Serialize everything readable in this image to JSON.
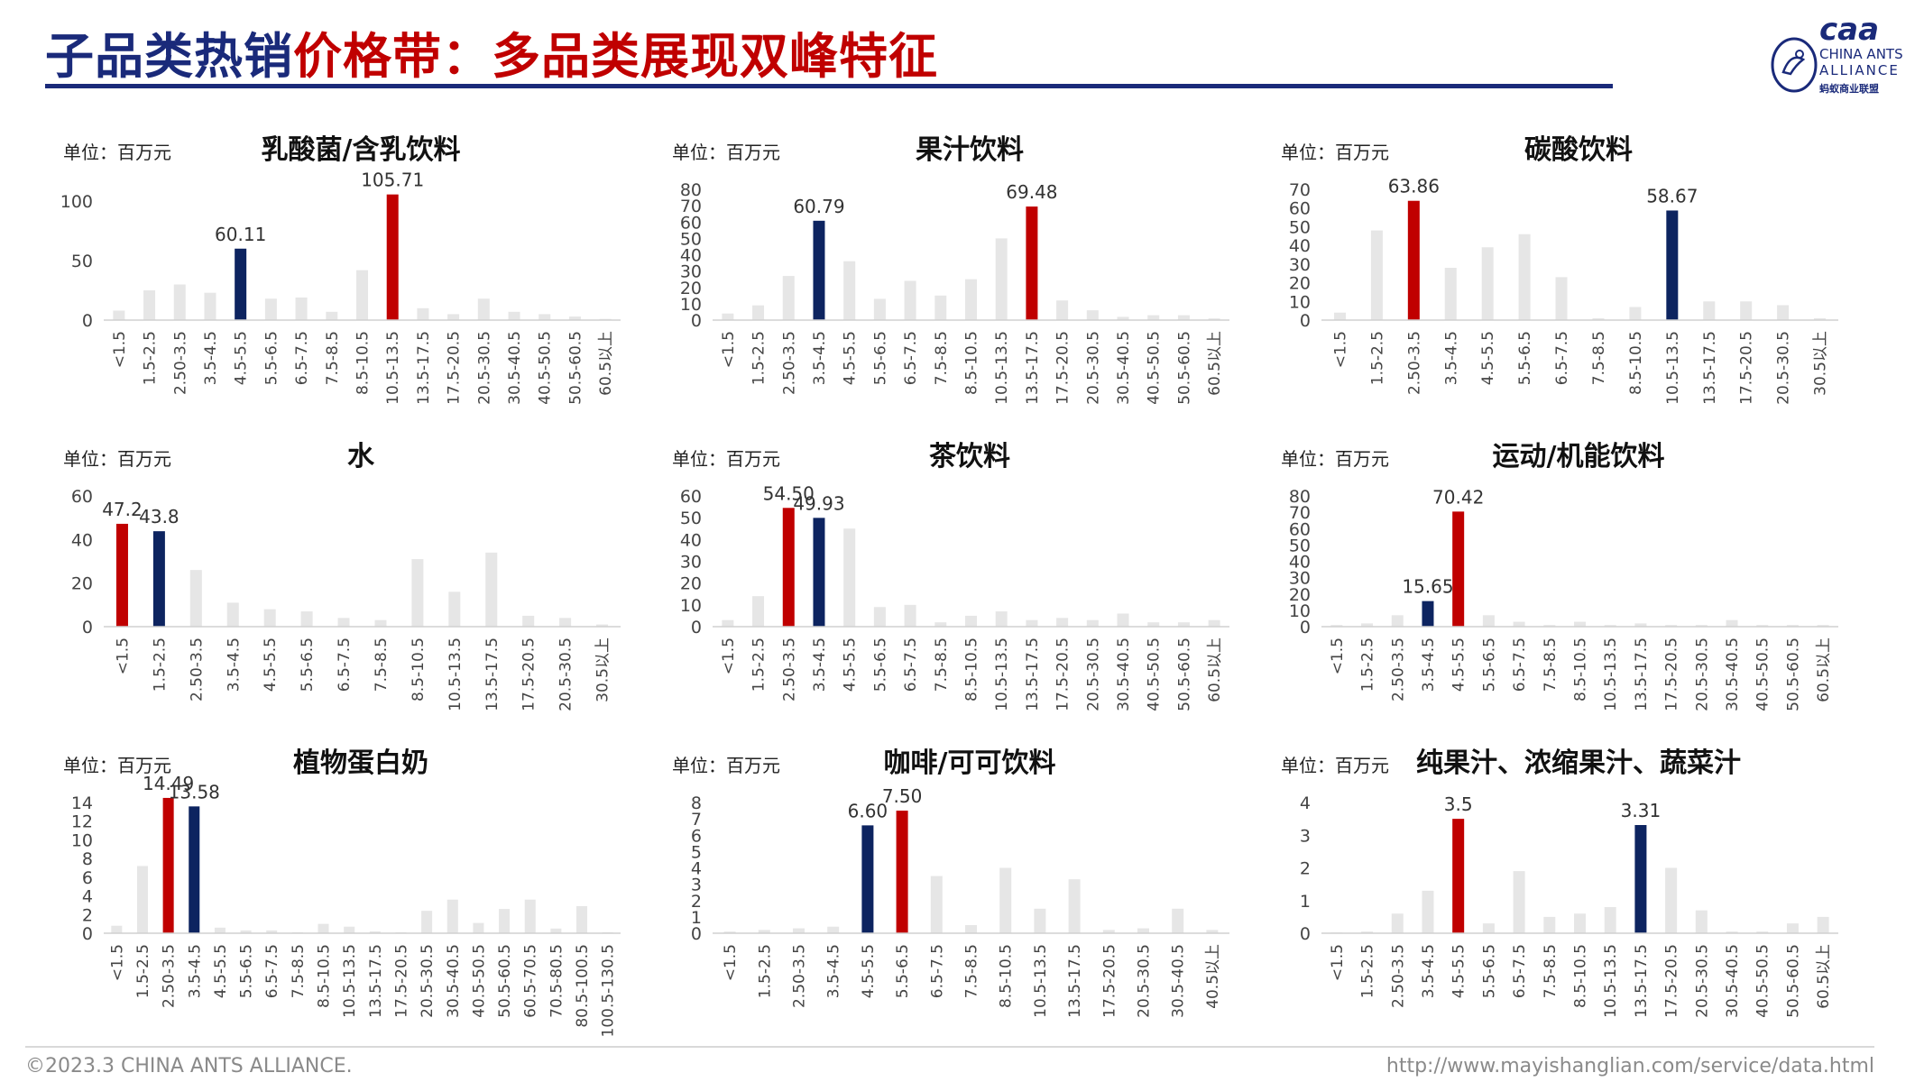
{
  "header": {
    "title_part1": "子品类热销",
    "title_part2": "价格带：多品类展现双峰特征"
  },
  "logo": {
    "mark": "caa",
    "line1": "CHINA ANTS",
    "line2": "ALLIANCE",
    "line3": "蚂蚁商业联盟"
  },
  "footer": {
    "copyright": "©2023.3 CHINA ANTS ALLIANCE.",
    "url": "http://www.mayishanglian.com/service/data.html"
  },
  "colors": {
    "title_blue": "#1a2a7a",
    "accent_red": "#c00000",
    "accent_navy": "#0d2460",
    "bar_gray": "#e6e6e6"
  },
  "chart_data": [
    {
      "type": "bar",
      "title": "乳酸菌/含乳饮料",
      "unit": "单位：百万元",
      "categories": [
        "<1.5",
        "1.5-2.5",
        "2.50-3.5",
        "3.5-4.5",
        "4.5-5.5",
        "5.5-6.5",
        "6.5-7.5",
        "7.5-8.5",
        "8.5-10.5",
        "10.5-13.5",
        "13.5-17.5",
        "17.5-20.5",
        "20.5-30.5",
        "30.5-40.5",
        "40.5-50.5",
        "50.5-60.5",
        "60.5以上"
      ],
      "values": [
        8,
        25,
        30,
        23,
        60.11,
        18,
        19,
        7,
        42,
        105.71,
        10,
        5,
        18,
        7,
        5,
        3,
        1
      ],
      "highlights": {
        "4": "navy",
        "9": "red"
      },
      "data_labels": {
        "4": "60.11",
        "9": "105.71"
      },
      "yticks": [
        "0",
        "50",
        "100"
      ],
      "ylim": [
        0,
        110
      ]
    },
    {
      "type": "bar",
      "title": "果汁饮料",
      "unit": "单位：百万元",
      "categories": [
        "<1.5",
        "1.5-2.5",
        "2.50-3.5",
        "3.5-4.5",
        "4.5-5.5",
        "5.5-6.5",
        "6.5-7.5",
        "7.5-8.5",
        "8.5-10.5",
        "10.5-13.5",
        "13.5-17.5",
        "17.5-20.5",
        "20.5-30.5",
        "30.5-40.5",
        "40.5-50.5",
        "50.5-60.5",
        "60.5以上"
      ],
      "values": [
        4,
        9,
        27,
        60.79,
        36,
        13,
        24,
        15,
        25,
        50,
        69.48,
        12,
        6,
        2,
        3,
        3,
        1
      ],
      "highlights": {
        "3": "navy",
        "10": "red"
      },
      "data_labels": {
        "3": "60.79",
        "10": "69.48"
      },
      "yticks": [
        "0",
        "10",
        "20",
        "30",
        "40",
        "50",
        "60",
        "70",
        "80"
      ],
      "ylim": [
        0,
        80
      ]
    },
    {
      "type": "bar",
      "title": "碳酸饮料",
      "unit": "单位：百万元",
      "categories": [
        "<1.5",
        "1.5-2.5",
        "2.50-3.5",
        "3.5-4.5",
        "4.5-5.5",
        "5.5-6.5",
        "6.5-7.5",
        "7.5-8.5",
        "8.5-10.5",
        "10.5-13.5",
        "13.5-17.5",
        "17.5-20.5",
        "20.5-30.5",
        "30.5以上"
      ],
      "values": [
        4,
        48,
        63.86,
        28,
        39,
        46,
        23,
        1,
        7,
        58.67,
        10,
        10,
        8,
        1
      ],
      "highlights": {
        "2": "red",
        "9": "navy"
      },
      "data_labels": {
        "2": "63.86",
        "9": "58.67"
      },
      "yticks": [
        "0",
        "10",
        "20",
        "30",
        "40",
        "50",
        "60",
        "70"
      ],
      "ylim": [
        0,
        70
      ]
    },
    {
      "type": "bar",
      "title": "水",
      "unit": "单位：百万元",
      "categories": [
        "<1.5",
        "1.5-2.5",
        "2.50-3.5",
        "3.5-4.5",
        "4.5-5.5",
        "5.5-6.5",
        "6.5-7.5",
        "7.5-8.5",
        "8.5-10.5",
        "10.5-13.5",
        "13.5-17.5",
        "17.5-20.5",
        "20.5-30.5",
        "30.5以上"
      ],
      "values": [
        47.2,
        43.8,
        26,
        11,
        8,
        7,
        4,
        3,
        31,
        16,
        34,
        5,
        4,
        1
      ],
      "highlights": {
        "0": "red",
        "1": "navy"
      },
      "data_labels": {
        "0": "47.2",
        "1": "43.8"
      },
      "yticks": [
        "0",
        "20",
        "40",
        "60"
      ],
      "ylim": [
        0,
        60
      ]
    },
    {
      "type": "bar",
      "title": "茶饮料",
      "unit": "单位：百万元",
      "categories": [
        "<1.5",
        "1.5-2.5",
        "2.50-3.5",
        "3.5-4.5",
        "4.5-5.5",
        "5.5-6.5",
        "6.5-7.5",
        "7.5-8.5",
        "8.5-10.5",
        "10.5-13.5",
        "13.5-17.5",
        "17.5-20.5",
        "20.5-30.5",
        "30.5-40.5",
        "40.5-50.5",
        "50.5-60.5",
        "60.5以上"
      ],
      "values": [
        3,
        14,
        54.5,
        49.93,
        45,
        9,
        10,
        2,
        5,
        7,
        3,
        4,
        3,
        6,
        2,
        2,
        3
      ],
      "highlights": {
        "2": "red",
        "3": "navy"
      },
      "data_labels": {
        "2": "54.50",
        "3": "49.93"
      },
      "yticks": [
        "0",
        "10",
        "20",
        "30",
        "40",
        "50",
        "60"
      ],
      "ylim": [
        0,
        60
      ]
    },
    {
      "type": "bar",
      "title": "运动/机能饮料",
      "unit": "单位：百万元",
      "categories": [
        "<1.5",
        "1.5-2.5",
        "2.50-3.5",
        "3.5-4.5",
        "4.5-5.5",
        "5.5-6.5",
        "6.5-7.5",
        "7.5-8.5",
        "8.5-10.5",
        "10.5-13.5",
        "13.5-17.5",
        "17.5-20.5",
        "20.5-30.5",
        "30.5-40.5",
        "40.5-50.5",
        "50.5-60.5",
        "60.5以上"
      ],
      "values": [
        1,
        2,
        7,
        15.65,
        70.42,
        7,
        3,
        1,
        3,
        1,
        2,
        1,
        1,
        4,
        1,
        1,
        1
      ],
      "highlights": {
        "3": "navy",
        "4": "red"
      },
      "data_labels": {
        "3": "15.65",
        "4": "70.42"
      },
      "yticks": [
        "0",
        "10",
        "20",
        "30",
        "40",
        "50",
        "60",
        "70",
        "80"
      ],
      "ylim": [
        0,
        80
      ]
    },
    {
      "type": "bar",
      "title": "植物蛋白奶",
      "unit": "单位：百万元",
      "categories": [
        "<1.5",
        "1.5-2.5",
        "2.50-3.5",
        "3.5-4.5",
        "4.5-5.5",
        "5.5-6.5",
        "6.5-7.5",
        "7.5-8.5",
        "8.5-10.5",
        "10.5-13.5",
        "13.5-17.5",
        "17.5-20.5",
        "20.5-30.5",
        "30.5-40.5",
        "40.5-50.5",
        "50.5-60.5",
        "60.5-70.5",
        "70.5-80.5",
        "80.5-100.5",
        "100.5-130.5"
      ],
      "values": [
        0.8,
        7.2,
        14.49,
        13.58,
        0.6,
        0.3,
        0.3,
        0.1,
        1,
        0.7,
        0.2,
        0.1,
        2.4,
        3.6,
        1.1,
        2.6,
        3.6,
        0.5,
        2.9,
        0.1
      ],
      "highlights": {
        "2": "red",
        "3": "navy"
      },
      "data_labels": {
        "2": "14.49",
        "3": "13.58"
      },
      "yticks": [
        "0",
        "2",
        "4",
        "6",
        "8",
        "10",
        "12",
        "14"
      ],
      "ylim": [
        0,
        14
      ]
    },
    {
      "type": "bar",
      "title": "咖啡/可可饮料",
      "unit": "单位：百万元",
      "categories": [
        "<1.5",
        "1.5-2.5",
        "2.50-3.5",
        "3.5-4.5",
        "4.5-5.5",
        "5.5-6.5",
        "6.5-7.5",
        "7.5-8.5",
        "8.5-10.5",
        "10.5-13.5",
        "13.5-17.5",
        "17.5-20.5",
        "20.5-30.5",
        "30.5-40.5",
        "40.5以上"
      ],
      "values": [
        0.1,
        0.2,
        0.3,
        0.4,
        6.6,
        7.5,
        3.5,
        0.5,
        4,
        1.5,
        3.3,
        0.2,
        0.3,
        1.5,
        0.2
      ],
      "highlights": {
        "4": "navy",
        "5": "red"
      },
      "data_labels": {
        "4": "6.60",
        "5": "7.50"
      },
      "yticks": [
        "0",
        "1",
        "2",
        "3",
        "4",
        "5",
        "6",
        "7",
        "8"
      ],
      "ylim": [
        0,
        8
      ]
    },
    {
      "type": "bar",
      "title": "纯果汁、浓缩果汁、蔬菜汁",
      "unit": "单位：百万元",
      "categories": [
        "<1.5",
        "1.5-2.5",
        "2.50-3.5",
        "3.5-4.5",
        "4.5-5.5",
        "5.5-6.5",
        "6.5-7.5",
        "7.5-8.5",
        "8.5-10.5",
        "10.5-13.5",
        "13.5-17.5",
        "17.5-20.5",
        "20.5-30.5",
        "30.5-40.5",
        "40.5-50.5",
        "50.5-60.5",
        "60.5以上"
      ],
      "values": [
        0.02,
        0.05,
        0.6,
        1.3,
        3.5,
        0.3,
        1.9,
        0.5,
        0.6,
        0.8,
        3.31,
        2.0,
        0.7,
        0.05,
        0.05,
        0.3,
        0.5
      ],
      "highlights": {
        "4": "red",
        "10": "navy"
      },
      "data_labels": {
        "4": "3.5",
        "10": "3.31"
      },
      "yticks": [
        "0",
        "1",
        "2",
        "3",
        "4"
      ],
      "ylim": [
        0,
        4
      ]
    }
  ]
}
